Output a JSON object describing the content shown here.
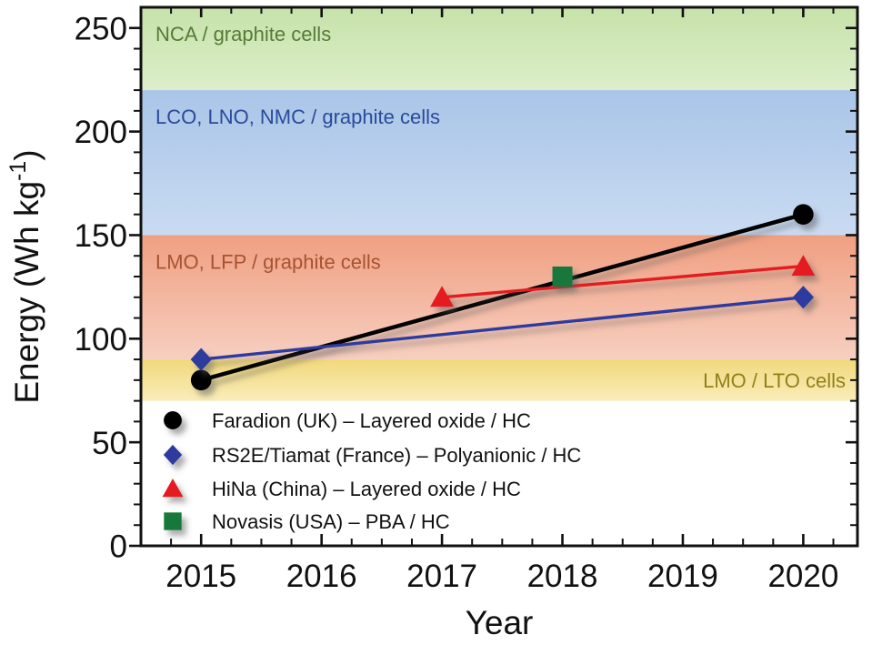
{
  "figure": {
    "background": "#ffffff",
    "axis_color": "#111111"
  },
  "chart_data": {
    "type": "line",
    "title": "",
    "xlabel": "Year",
    "ylabel": "Energy (Wh kg⁻¹)",
    "xlim": [
      2014.5,
      2020.45
    ],
    "ylim": [
      0,
      260
    ],
    "x_major_ticks": [
      2015,
      2016,
      2017,
      2018,
      2019,
      2020
    ],
    "y_major_ticks": [
      0,
      50,
      100,
      150,
      200,
      250
    ],
    "x_minor_step": 0.25,
    "y_minor_step": 10,
    "grid": false,
    "legend_position": "inside-bottom-left",
    "bands": [
      {
        "id": "nca-graphite",
        "label": "NCA / graphite cells",
        "from": 220,
        "to": 260,
        "color_top": "#c6e2a9",
        "color_bottom": "#ddeeca",
        "label_color": "#567b38",
        "label_align": "left"
      },
      {
        "id": "lco-lno-nmc-graphite",
        "label": "LCO, LNO, NMC / graphite cells",
        "from": 150,
        "to": 220,
        "color_top": "#a9c5e8",
        "color_bottom": "#c9dbf2",
        "label_color": "#2b4a99",
        "label_align": "left"
      },
      {
        "id": "lmo-lfp-graphite",
        "label": "LMO, LFP / graphite cells",
        "from": 90,
        "to": 150,
        "color_top": "#f09f81",
        "color_bottom": "#f7cfc0",
        "label_color": "#a75331",
        "label_align": "left"
      },
      {
        "id": "lmo-lto",
        "label": "LMO / LTO cells",
        "from": 70,
        "to": 90,
        "color_top": "#f2d87c",
        "color_bottom": "#f9edb9",
        "label_color": "#93801a",
        "label_align": "right"
      }
    ],
    "series": [
      {
        "id": "faradion",
        "name": "Faradion (UK) – Layered oxide / HC",
        "marker": "circle",
        "color": "#000000",
        "line_width": 4.5,
        "points": [
          [
            2015,
            80
          ],
          [
            2020,
            160
          ]
        ]
      },
      {
        "id": "rs2e-tiamat",
        "name": "RS2E/Tiamat (France) – Polyanionic / HC",
        "marker": "diamond",
        "color": "#2e3a9e",
        "line_width": 3.4,
        "points": [
          [
            2015,
            90
          ],
          [
            2020,
            120
          ]
        ]
      },
      {
        "id": "hina",
        "name": "HiNa (China) – Layered oxide / HC",
        "marker": "triangle",
        "color": "#e41d20",
        "line_width": 3.4,
        "points": [
          [
            2017,
            120
          ],
          [
            2020,
            135
          ]
        ]
      },
      {
        "id": "novasis",
        "name": "Novasis (USA) – PBA / HC",
        "marker": "square",
        "color": "#15793b",
        "line_width": 0,
        "points": [
          [
            2018,
            130
          ]
        ]
      }
    ]
  }
}
